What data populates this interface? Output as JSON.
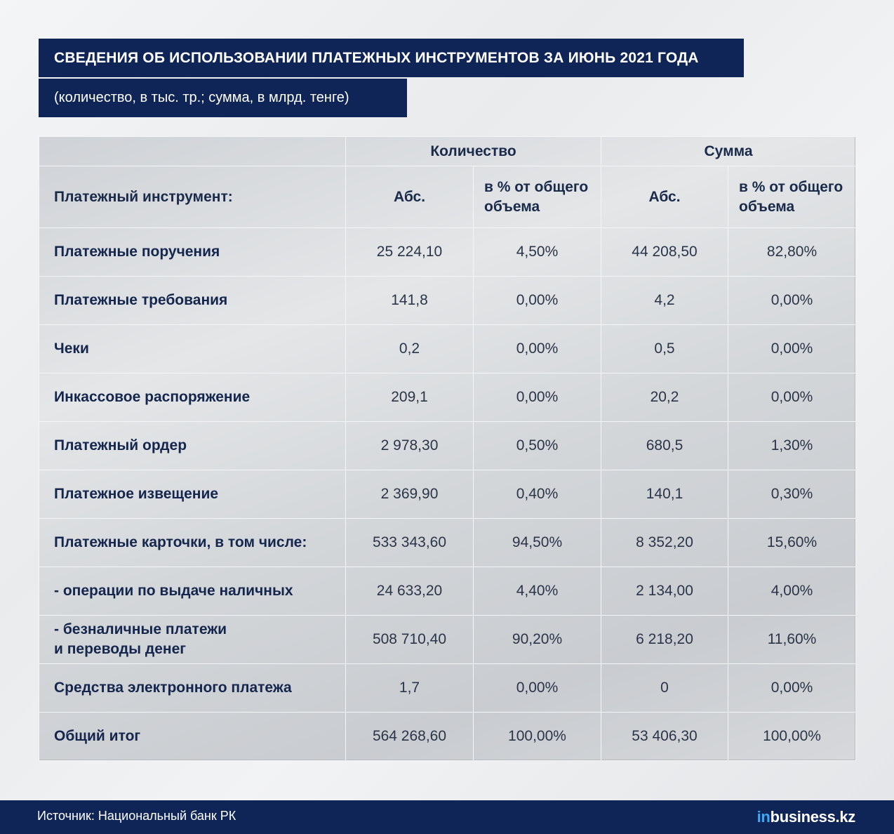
{
  "title": "СВЕДЕНИЯ ОБ ИСПОЛЬЗОВАНИИ ПЛАТЕЖНЫХ ИНСТРУМЕНТОВ ЗА ИЮНЬ 2021 ГОДА",
  "subtitle": "(количество, в тыс. тр.; сумма, в млрд. тенге)",
  "table": {
    "group_headers": [
      "Количество",
      "Сумма"
    ],
    "instrument_header": "Платежный инструмент:",
    "sub_headers": [
      "Абс.",
      "в % от общего объема",
      "Абс.",
      "в % от общего объема"
    ],
    "rows": [
      {
        "name": "Платежные поручения",
        "qty_abs": "25 224,10",
        "qty_pct": "4,50%",
        "sum_abs": "44 208,50",
        "sum_pct": "82,80%"
      },
      {
        "name": "Платежные требования",
        "qty_abs": "141,8",
        "qty_pct": "0,00%",
        "sum_abs": "4,2",
        "sum_pct": "0,00%"
      },
      {
        "name": "Чеки",
        "qty_abs": "0,2",
        "qty_pct": "0,00%",
        "sum_abs": "0,5",
        "sum_pct": "0,00%"
      },
      {
        "name": "Инкассовое распоряжение",
        "qty_abs": "209,1",
        "qty_pct": "0,00%",
        "sum_abs": "20,2",
        "sum_pct": "0,00%"
      },
      {
        "name": "Платежный ордер",
        "qty_abs": "2 978,30",
        "qty_pct": "0,50%",
        "sum_abs": "680,5",
        "sum_pct": "1,30%"
      },
      {
        "name": "Платежное извещение",
        "qty_abs": "2 369,90",
        "qty_pct": "0,40%",
        "sum_abs": "140,1",
        "sum_pct": "0,30%"
      },
      {
        "name": "Платежные карточки, в том числе:",
        "qty_abs": "533 343,60",
        "qty_pct": "94,50%",
        "sum_abs": "8 352,20",
        "sum_pct": "15,60%"
      },
      {
        "name": "- операции по выдаче наличных",
        "qty_abs": "24 633,20",
        "qty_pct": "4,40%",
        "sum_abs": "2 134,00",
        "sum_pct": "4,00%"
      },
      {
        "name": "- безналичные платежи",
        "name2": "и переводы денег",
        "qty_abs": "508 710,40",
        "qty_pct": "90,20%",
        "sum_abs": "6 218,20",
        "sum_pct": "11,60%"
      },
      {
        "name": "Средства электронного платежа",
        "qty_abs": "1,7",
        "qty_pct": "0,00%",
        "sum_abs": "0",
        "sum_pct": "0,00%"
      },
      {
        "name": "Общий итог",
        "qty_abs": "564 268,60",
        "qty_pct": "100,00%",
        "sum_abs": "53 406,30",
        "sum_pct": "100,00%"
      }
    ]
  },
  "footer": {
    "source": "Источник:  Национальный банк РК",
    "brand_prefix": "in",
    "brand_suffix": "business.kz"
  },
  "colors": {
    "navy": "#0f2557",
    "brand_accent": "#3fa9f5"
  }
}
